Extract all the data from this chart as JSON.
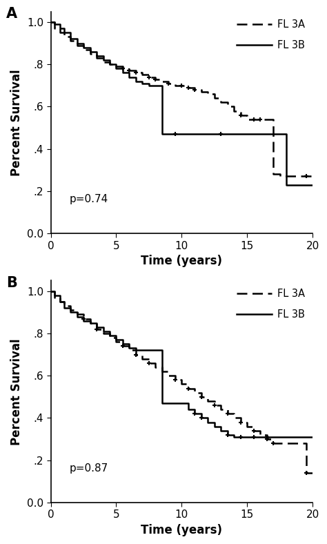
{
  "panel_A": {
    "label": "A",
    "p_value": "p=0.74",
    "fl3a": {
      "t": [
        0,
        0.3,
        0.7,
        1.0,
        1.5,
        2.0,
        2.5,
        3.0,
        3.5,
        4.0,
        4.5,
        5.0,
        5.5,
        6.0,
        6.5,
        7.0,
        7.5,
        8.0,
        8.5,
        9.0,
        9.5,
        10.0,
        10.5,
        11.0,
        11.5,
        12.0,
        12.5,
        13.0,
        13.5,
        14.0,
        14.5,
        15.0,
        15.5,
        16.0,
        16.5,
        17.0,
        17.5,
        18.0,
        18.5,
        19.0,
        19.5,
        20.0
      ],
      "s": [
        1.0,
        0.97,
        0.95,
        0.93,
        0.91,
        0.89,
        0.87,
        0.85,
        0.83,
        0.81,
        0.8,
        0.79,
        0.78,
        0.77,
        0.76,
        0.75,
        0.74,
        0.73,
        0.72,
        0.71,
        0.7,
        0.7,
        0.69,
        0.68,
        0.67,
        0.66,
        0.64,
        0.62,
        0.6,
        0.58,
        0.56,
        0.54,
        0.54,
        0.54,
        0.54,
        0.28,
        0.27,
        0.27,
        0.27,
        0.27,
        0.27,
        0.27
      ],
      "censors_t": [
        5.5,
        6.0,
        6.5,
        7.5,
        8.0,
        9.0,
        10.0,
        10.5,
        11.0,
        14.5,
        15.5,
        16.0,
        19.5
      ],
      "censors_s": [
        0.78,
        0.77,
        0.76,
        0.74,
        0.73,
        0.71,
        0.7,
        0.69,
        0.68,
        0.56,
        0.54,
        0.54,
        0.27
      ]
    },
    "fl3b": {
      "t": [
        0,
        0.3,
        0.7,
        1.0,
        1.5,
        2.0,
        2.5,
        3.0,
        3.5,
        4.0,
        4.5,
        5.0,
        5.5,
        6.0,
        6.5,
        7.0,
        7.5,
        8.0,
        8.5,
        9.0,
        9.5,
        10.0,
        10.5,
        11.0,
        11.5,
        12.0,
        12.5,
        13.0,
        13.5,
        14.0,
        14.5,
        15.0,
        15.5,
        16.0,
        16.5,
        17.0,
        17.5,
        18.0,
        18.5,
        19.0,
        19.5,
        20.0
      ],
      "s": [
        1.0,
        0.99,
        0.97,
        0.95,
        0.92,
        0.9,
        0.88,
        0.86,
        0.84,
        0.82,
        0.8,
        0.78,
        0.76,
        0.74,
        0.72,
        0.71,
        0.7,
        0.7,
        0.47,
        0.47,
        0.47,
        0.47,
        0.47,
        0.47,
        0.47,
        0.47,
        0.47,
        0.47,
        0.47,
        0.47,
        0.47,
        0.47,
        0.47,
        0.47,
        0.47,
        0.47,
        0.47,
        0.23,
        0.23,
        0.23,
        0.23,
        0.23
      ],
      "censors_t": [
        9.5,
        13.0
      ],
      "censors_s": [
        0.47,
        0.47
      ]
    }
  },
  "panel_B": {
    "label": "B",
    "p_value": "p=0.87",
    "fl3a": {
      "t": [
        0,
        0.3,
        0.7,
        1.0,
        1.5,
        2.0,
        2.5,
        3.0,
        3.5,
        4.0,
        4.5,
        5.0,
        5.5,
        6.0,
        6.5,
        7.0,
        7.5,
        8.0,
        8.5,
        9.0,
        9.5,
        10.0,
        10.5,
        11.0,
        11.5,
        12.0,
        12.5,
        13.0,
        13.5,
        14.0,
        14.5,
        15.0,
        15.5,
        16.0,
        16.5,
        17.0,
        17.5,
        18.0,
        18.5,
        19.0,
        19.5,
        20.0
      ],
      "s": [
        1.0,
        0.97,
        0.95,
        0.93,
        0.91,
        0.89,
        0.87,
        0.85,
        0.82,
        0.8,
        0.78,
        0.76,
        0.74,
        0.72,
        0.7,
        0.68,
        0.66,
        0.64,
        0.62,
        0.6,
        0.58,
        0.56,
        0.54,
        0.52,
        0.5,
        0.48,
        0.46,
        0.44,
        0.42,
        0.4,
        0.38,
        0.36,
        0.34,
        0.32,
        0.3,
        0.28,
        0.28,
        0.28,
        0.28,
        0.28,
        0.14,
        0.14
      ],
      "censors_t": [
        2.5,
        3.5,
        5.5,
        6.5,
        7.5,
        9.5,
        10.5,
        11.5,
        12.5,
        13.5,
        14.5,
        15.5,
        16.5,
        17.0,
        19.5
      ],
      "censors_s": [
        0.87,
        0.82,
        0.74,
        0.7,
        0.66,
        0.58,
        0.54,
        0.5,
        0.46,
        0.42,
        0.38,
        0.34,
        0.3,
        0.28,
        0.14
      ]
    },
    "fl3b": {
      "t": [
        0,
        0.3,
        0.7,
        1.0,
        1.5,
        2.0,
        2.5,
        3.0,
        3.5,
        4.0,
        4.5,
        5.0,
        5.5,
        6.0,
        6.5,
        7.0,
        7.5,
        8.0,
        8.5,
        9.0,
        9.5,
        10.0,
        10.5,
        11.0,
        11.5,
        12.0,
        12.5,
        13.0,
        13.5,
        14.0,
        14.5,
        15.0,
        15.5,
        16.0,
        16.5,
        17.0,
        17.5,
        18.0,
        18.5,
        19.0,
        19.5,
        20.0
      ],
      "s": [
        1.0,
        0.98,
        0.95,
        0.92,
        0.9,
        0.88,
        0.86,
        0.85,
        0.83,
        0.81,
        0.79,
        0.77,
        0.75,
        0.73,
        0.72,
        0.72,
        0.72,
        0.72,
        0.47,
        0.47,
        0.47,
        0.47,
        0.44,
        0.42,
        0.4,
        0.38,
        0.36,
        0.34,
        0.32,
        0.31,
        0.31,
        0.31,
        0.31,
        0.31,
        0.31,
        0.31,
        0.31,
        0.31,
        0.31,
        0.31,
        0.31,
        0.31
      ],
      "censors_t": [
        11.0,
        11.5,
        13.5,
        14.5,
        15.5,
        16.5
      ],
      "censors_s": [
        0.42,
        0.4,
        0.32,
        0.31,
        0.31,
        0.31
      ]
    }
  },
  "ylabel": "Percent Survival",
  "xlabel": "Time (years)",
  "yticks": [
    0.0,
    0.2,
    0.4,
    0.6,
    0.8,
    1.0
  ],
  "ytick_labels": [
    "0.0",
    ".2",
    ".4",
    ".6",
    ".8",
    "1.0"
  ],
  "xticks": [
    0,
    5,
    10,
    15,
    20
  ],
  "xlim": [
    0,
    20
  ],
  "ylim": [
    0.0,
    1.05
  ],
  "line_color": "#000000",
  "bg_color": "#ffffff",
  "legend_fl3a": "FL 3A",
  "legend_fl3b": "FL 3B"
}
